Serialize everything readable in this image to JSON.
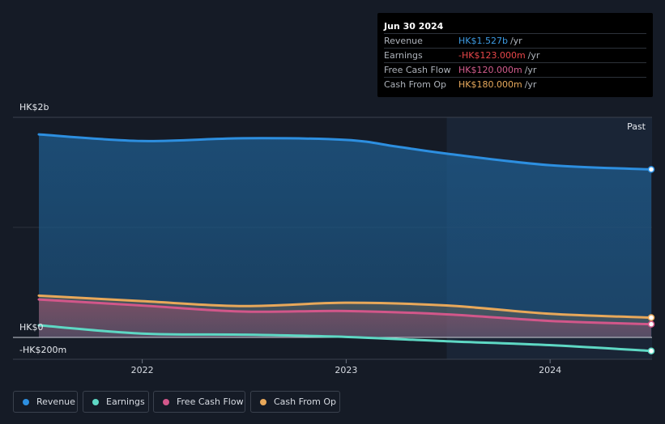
{
  "tooltip": {
    "date": "Jun 30 2024",
    "rows": [
      {
        "label": "Revenue",
        "value": "HK$1.527b",
        "unit": "/yr",
        "color": "#3d9be3"
      },
      {
        "label": "Earnings",
        "value": "-HK$123.000m",
        "unit": "/yr",
        "color": "#e8474a"
      },
      {
        "label": "Free Cash Flow",
        "value": "HK$120.000m",
        "unit": "/yr",
        "color": "#d35d8e"
      },
      {
        "label": "Cash From Op",
        "value": "HK$180.000m",
        "unit": "/yr",
        "color": "#e7a95c"
      }
    ]
  },
  "past_label": "Past",
  "legend": [
    {
      "label": "Revenue",
      "color": "#2d8fe0",
      "icon": "revenue-dot"
    },
    {
      "label": "Earnings",
      "color": "#5ed8c4",
      "icon": "earnings-dot"
    },
    {
      "label": "Free Cash Flow",
      "color": "#d2578a",
      "icon": "fcf-dot"
    },
    {
      "label": "Cash From Op",
      "color": "#e8a85a",
      "icon": "cfo-dot"
    }
  ],
  "chart_data": {
    "type": "line",
    "y_unit": "HK$",
    "ytick_labels": [
      "HK$2b",
      "HK$0",
      "-HK$200m"
    ],
    "ylim": [
      -200,
      2000
    ],
    "xtick_labels": [
      "2022",
      "2023",
      "2024"
    ],
    "x_range": [
      "2021-06-30",
      "2024-06-30"
    ],
    "forecast_start": "2023-06-30",
    "series": [
      {
        "name": "Revenue",
        "color": "#2d8fe0",
        "fill": true,
        "points": [
          [
            "2021-06-30",
            1845
          ],
          [
            "2021-12-31",
            1785
          ],
          [
            "2022-06-30",
            1810
          ],
          [
            "2022-12-31",
            1795
          ],
          [
            "2023-03-31",
            1735
          ],
          [
            "2023-06-30",
            1670
          ],
          [
            "2023-12-31",
            1565
          ],
          [
            "2024-06-30",
            1527
          ]
        ]
      },
      {
        "name": "Earnings",
        "color": "#5ed8c4",
        "fill": false,
        "points": [
          [
            "2021-06-30",
            110
          ],
          [
            "2021-12-31",
            35
          ],
          [
            "2022-06-30",
            25
          ],
          [
            "2022-12-31",
            5
          ],
          [
            "2023-06-30",
            -35
          ],
          [
            "2023-12-31",
            -70
          ],
          [
            "2024-06-30",
            -123
          ]
        ]
      },
      {
        "name": "Free Cash Flow",
        "color": "#d2578a",
        "fill": true,
        "points": [
          [
            "2021-06-30",
            345
          ],
          [
            "2021-12-31",
            290
          ],
          [
            "2022-06-30",
            235
          ],
          [
            "2022-12-31",
            240
          ],
          [
            "2023-06-30",
            210
          ],
          [
            "2023-12-31",
            150
          ],
          [
            "2024-06-30",
            120
          ]
        ]
      },
      {
        "name": "Cash From Op",
        "color": "#e8a85a",
        "fill": true,
        "points": [
          [
            "2021-06-30",
            380
          ],
          [
            "2021-12-31",
            330
          ],
          [
            "2022-06-30",
            285
          ],
          [
            "2022-12-31",
            315
          ],
          [
            "2023-06-30",
            290
          ],
          [
            "2023-12-31",
            215
          ],
          [
            "2024-06-30",
            180
          ]
        ]
      }
    ]
  }
}
